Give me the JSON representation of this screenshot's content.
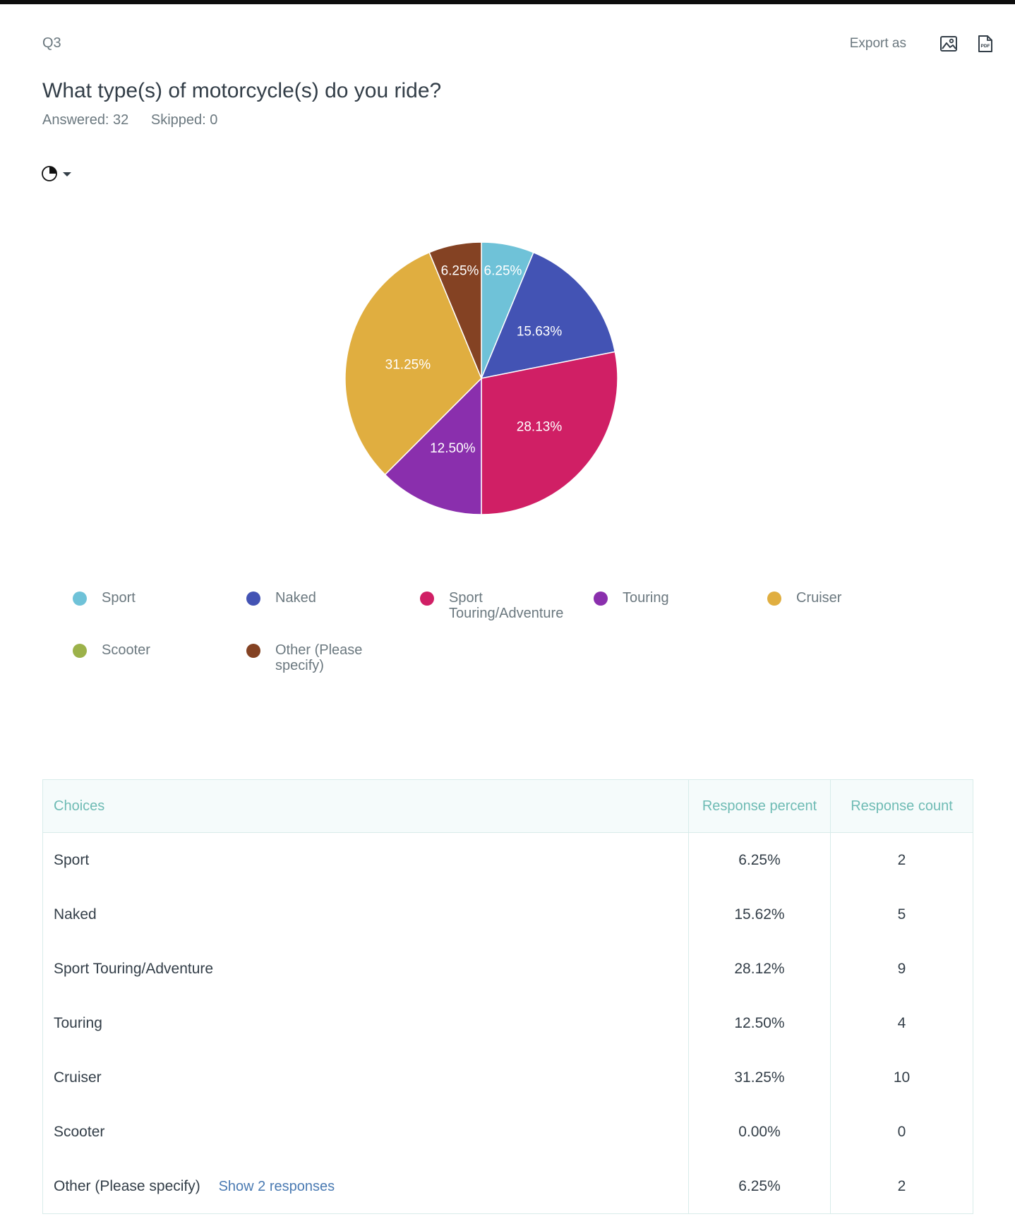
{
  "question": {
    "number": "Q3",
    "title": "What type(s) of motorcycle(s) do you ride?",
    "answered": "Answered: 32",
    "skipped": "Skipped: 0"
  },
  "export": {
    "label": "Export as",
    "image_icon": "image-icon",
    "pdf_icon": "pdf-icon",
    "pdf_text": "PDF"
  },
  "chart_toggle": {
    "icon": "pie-chart-icon",
    "caret": "caret-down-icon"
  },
  "chart_data": {
    "type": "pie",
    "slices": [
      {
        "label": "Sport",
        "value": 6.25,
        "display": "6.25%",
        "color": "#6fc2d8"
      },
      {
        "label": "Naked",
        "value": 15.63,
        "display": "15.63%",
        "color": "#4353b4"
      },
      {
        "label": "Sport Touring/Adventure",
        "value": 28.13,
        "display": "28.13%",
        "color": "#d01f65"
      },
      {
        "label": "Touring",
        "value": 12.5,
        "display": "12.50%",
        "color": "#8a2fad"
      },
      {
        "label": "Cruiser",
        "value": 31.25,
        "display": "31.25%",
        "color": "#e0ae40"
      },
      {
        "label": "Scooter",
        "value": 0,
        "display": "",
        "color": "#9cb24a"
      },
      {
        "label": "Other (Please specify)",
        "value": 6.25,
        "display": "6.25%",
        "color": "#844223"
      }
    ],
    "legend": [
      {
        "label": "Sport",
        "color": "#6fc2d8"
      },
      {
        "label": "Naked",
        "color": "#4353b4"
      },
      {
        "label": "Sport Touring/Adventure",
        "color": "#d01f65"
      },
      {
        "label": "Touring",
        "color": "#8a2fad"
      },
      {
        "label": "Cruiser",
        "color": "#e0ae40"
      },
      {
        "label": "Scooter",
        "color": "#9cb24a"
      },
      {
        "label": "Other (Please specify)",
        "color": "#844223"
      }
    ]
  },
  "table": {
    "headers": [
      "Choices",
      "Response percent",
      "Response count"
    ],
    "rows": [
      {
        "choice": "Sport",
        "percent": "6.25%",
        "count": "2"
      },
      {
        "choice": "Naked",
        "percent": "15.62%",
        "count": "5"
      },
      {
        "choice": "Sport Touring/Adventure",
        "percent": "28.12%",
        "count": "9"
      },
      {
        "choice": "Touring",
        "percent": "12.50%",
        "count": "4"
      },
      {
        "choice": "Cruiser",
        "percent": "31.25%",
        "count": "10"
      },
      {
        "choice": "Scooter",
        "percent": "0.00%",
        "count": "0"
      },
      {
        "choice": "Other (Please specify)",
        "percent": "6.25%",
        "count": "2",
        "link": "Show 2 responses"
      }
    ]
  }
}
